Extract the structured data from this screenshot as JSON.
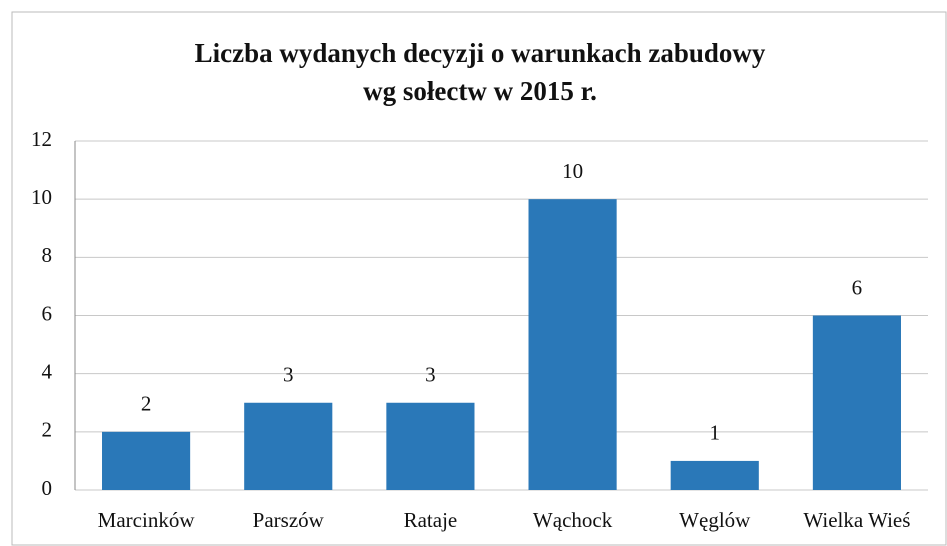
{
  "chart_data": {
    "type": "bar",
    "title": [
      "Liczba wydanych decyzji o warunkach zabudowy",
      "wg sołectw w 2015 r."
    ],
    "categories": [
      "Marcinków",
      "Parszów",
      "Rataje",
      "Wąchock",
      "Węglów",
      "Wielka Wieś"
    ],
    "values": [
      2,
      3,
      3,
      10,
      1,
      6
    ],
    "color": "#2a78b8",
    "ylim": [
      0,
      12
    ],
    "yticks": [
      0,
      2,
      4,
      6,
      8,
      10,
      12
    ],
    "grid": true
  }
}
